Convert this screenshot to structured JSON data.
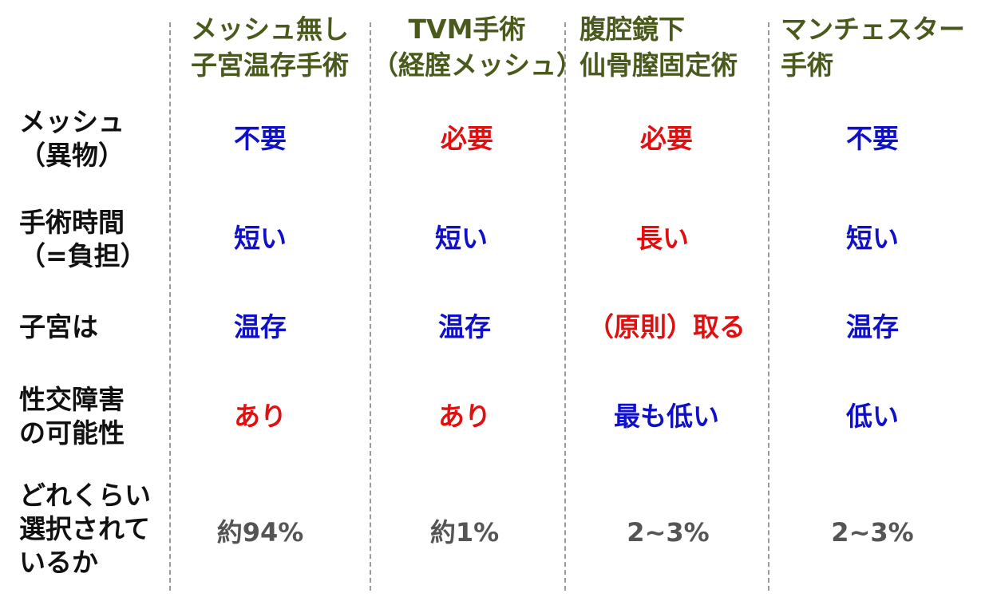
{
  "columns": [
    {
      "line1": "メッシュ無し",
      "line2": "子宮温存手術"
    },
    {
      "line1": "TVM手術",
      "line2": "（経腟メッシュ）"
    },
    {
      "line1": "腹腔鏡下",
      "line2": "仙骨膣固定術"
    },
    {
      "line1": "マンチェスター",
      "line2": "手術"
    }
  ],
  "rows": [
    {
      "label": [
        "メッシュ",
        "（異物）"
      ],
      "values": [
        "不要",
        "必要",
        "必要",
        "不要"
      ]
    },
    {
      "label": [
        "手術時間",
        "（=負担）"
      ],
      "values": [
        "短い",
        "短い",
        "長い",
        "短い"
      ]
    },
    {
      "label": [
        "子宮は"
      ],
      "values": [
        "温存",
        "温存",
        "（原則）取る",
        "温存"
      ]
    },
    {
      "label": [
        "性交障害",
        "の可能性"
      ],
      "values": [
        "あり",
        "あり",
        "最も低い",
        "低い"
      ]
    },
    {
      "label": [
        "どれくらい",
        "選択されて",
        "いるか"
      ],
      "values": [
        "約94%",
        "約1%",
        "2~3%",
        "2~3%"
      ]
    }
  ],
  "colors": {
    "header": "#4a5a1c",
    "positive": "#1010c8",
    "negative": "#e01010",
    "neutral": "#555555",
    "label": "#111111"
  }
}
